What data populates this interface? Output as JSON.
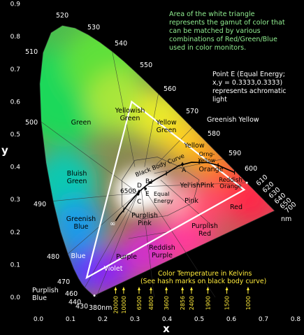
{
  "axes": {
    "x_label": "x",
    "y_label": "y",
    "x_ticks": [
      "0.0",
      "0.1",
      "0.2",
      "0.3",
      "0.4",
      "0.5",
      "0.6",
      "0.7",
      "0.8"
    ],
    "y_ticks": [
      "0.0",
      "0.1",
      "0.2",
      "0.3",
      "0.4",
      "0.5",
      "0.6",
      "0.7",
      "0.8",
      "0.9"
    ]
  },
  "annotations": {
    "gamut_note": [
      "Area of the white triangle",
      "represents the gamut of color that",
      "can be matched by various",
      "combinations of Red/Green/Blue",
      "used in color monitors."
    ],
    "point_e_note": [
      "Point E (Equal Energy;",
      "x,y = 0.3333,0.3333)",
      "represents achromatic",
      "light"
    ],
    "temperature_note": [
      "Color Temperature in Kelvins",
      "(See hash marks on black body curve)"
    ],
    "black_body_label": "Black Body Curve",
    "nm_label": "nm"
  },
  "wavelengths": {
    "w380": "380nm",
    "w430": "430",
    "w440": "440",
    "w460": "460",
    "w470": "470",
    "w480": "480",
    "w490": "490",
    "w500": "500",
    "w510": "510",
    "w520": "520",
    "w530": "530",
    "w540": "540",
    "w550": "550",
    "w560": "560",
    "w570": "570",
    "w580": "580",
    "w590": "590",
    "w600": "600",
    "w610": "610",
    "w620": "620",
    "w630": "630",
    "w640": "640",
    "w650": "650",
    "w700": "700"
  },
  "regions": {
    "green": "Green",
    "yellowish_green": [
      "Yellowish",
      "Green"
    ],
    "greenish_yellow": "Greenish Yellow",
    "yellow_green": [
      "Yellow",
      "Green"
    ],
    "yellow": "Yellow",
    "orange_yellow": [
      "Orng-",
      "Yellow"
    ],
    "orange": "Orange",
    "reddish_orange": [
      "Reddish",
      "Orange"
    ],
    "yellish_pink": "Yel'ishPink",
    "bluish_green": [
      "Bluish",
      "Green"
    ],
    "greenish_blue": [
      "Greenish",
      "Blue"
    ],
    "pink": "Pink",
    "red": "Red",
    "purplish_pink": [
      "Purplish",
      "Pink"
    ],
    "purplish_red": [
      "Purplish",
      "Red"
    ],
    "reddish_purple": [
      "Reddish",
      "Purple"
    ],
    "purple": "Purple",
    "violet": "Violet",
    "blue": "Blue",
    "purplish_blue": [
      "Purplish",
      "Blue"
    ]
  },
  "points": {
    "A": "A",
    "B": "B",
    "C": "C",
    "D": "D",
    "E": "E",
    "equal_energy": [
      "Equal",
      "Energy"
    ],
    "t6500": "6500",
    "infinity": "∞"
  },
  "temperatures": [
    "20000",
    "10000",
    "6500",
    "4800",
    "3600",
    "2856",
    "2400",
    "1900",
    "1500",
    "1000"
  ],
  "colors": {
    "background": "#000000",
    "annotation_green": "#90ee90",
    "annotation_white": "#ffffff",
    "temperature_yellow": "#ffeb3b",
    "triangle": "#ffffff"
  }
}
